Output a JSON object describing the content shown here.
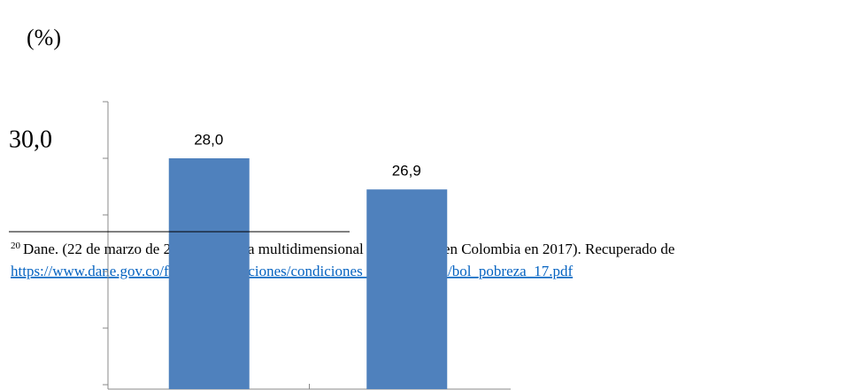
{
  "chart_data": {
    "type": "bar",
    "unit_label": "(%)",
    "categories": [
      null,
      null
    ],
    "values": [
      28.0,
      26.9
    ],
    "value_labels": [
      "28,0",
      "26,9"
    ],
    "color": "#4f81bd",
    "ylim": [
      20,
      30
    ],
    "yticks": [
      {
        "value": 30,
        "label": "30,0"
      }
    ],
    "minor_yticks": [
      28,
      26,
      24,
      22,
      20
    ]
  },
  "footnote": {
    "number": "20",
    "text": "Dane. (22 de marzo de 2018). Pobreza multidimensional y monetario en Colombia en 2017). Recuperado de",
    "link": "https://www.dane.gov.co/files/investigaciones/condiciones_vida/pobreza/bol_pobreza_17.pdf"
  }
}
